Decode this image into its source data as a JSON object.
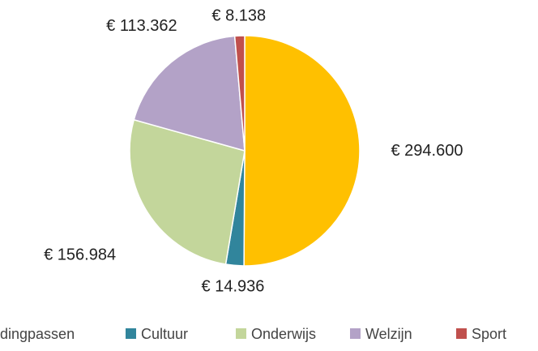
{
  "chart_data": {
    "type": "pie",
    "categories": [
      "dingpassen",
      "Cultuur",
      "Onderwijs",
      "Welzijn",
      "Sport"
    ],
    "values": [
      294600,
      14936,
      156984,
      113362,
      8138
    ],
    "value_labels": [
      "€ 294.600",
      "€ 14.936",
      "€ 156.984",
      "€ 113.362",
      "€ 8.138"
    ],
    "colors": [
      "#FFC000",
      "#31859C",
      "#C3D69B",
      "#B3A2C7",
      "#C0504D"
    ],
    "legend": "bottom"
  }
}
